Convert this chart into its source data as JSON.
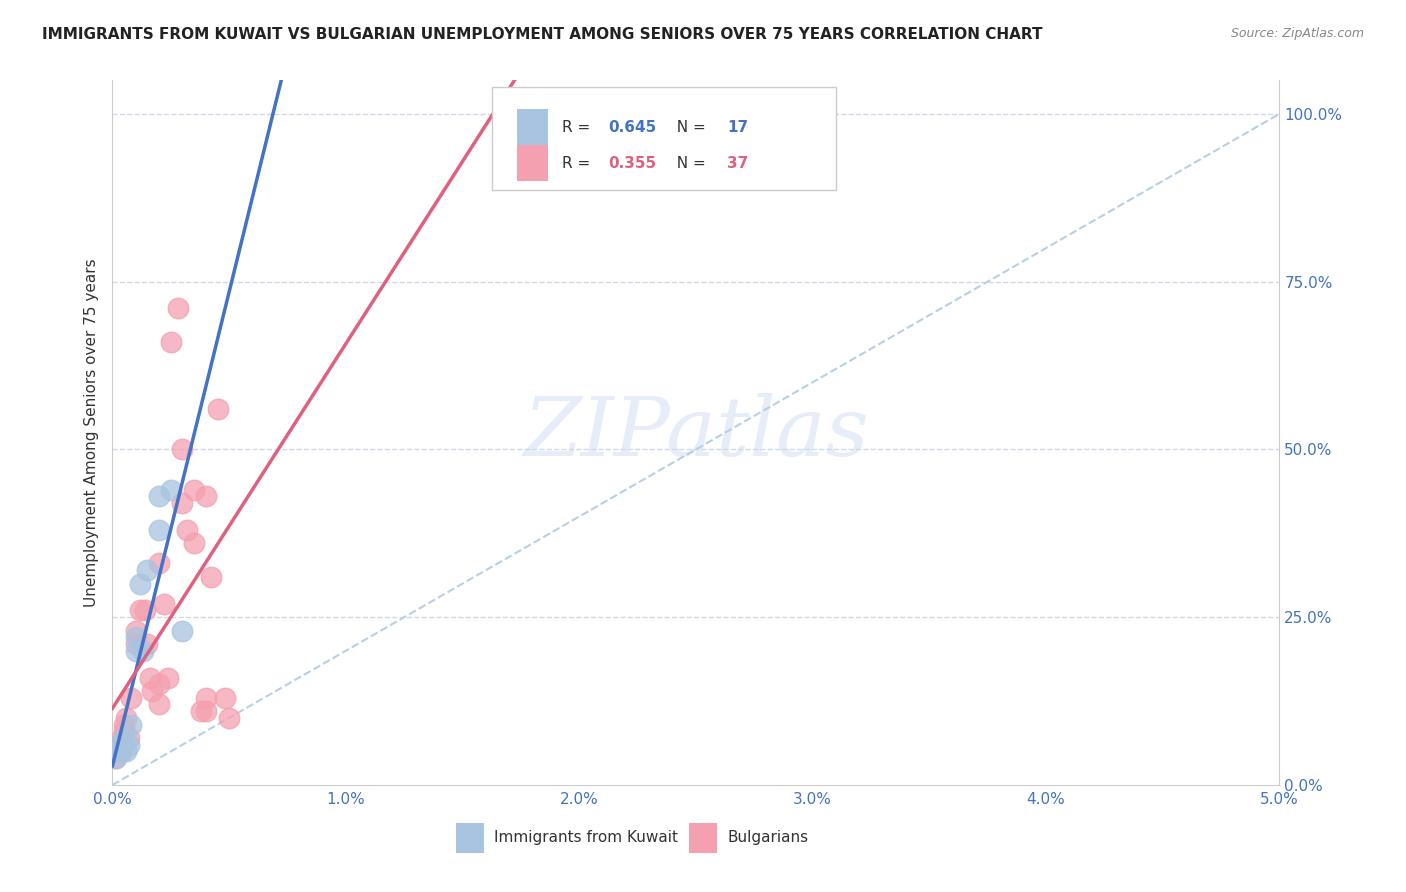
{
  "title": "IMMIGRANTS FROM KUWAIT VS BULGARIAN UNEMPLOYMENT AMONG SENIORS OVER 75 YEARS CORRELATION CHART",
  "source": "Source: ZipAtlas.com",
  "ylabel": "Unemployment Among Seniors over 75 years",
  "xlim": [
    0.0,
    0.05
  ],
  "ylim": [
    0.0,
    1.05
  ],
  "xticklabels": [
    "0.0%",
    "1.0%",
    "2.0%",
    "3.0%",
    "4.0%",
    "5.0%"
  ],
  "xtick_vals": [
    0.0,
    0.01,
    0.02,
    0.03,
    0.04,
    0.05
  ],
  "ytick_right_vals": [
    0.0,
    0.25,
    0.5,
    0.75,
    1.0
  ],
  "ytick_right_labels": [
    "0.0%",
    "25.0%",
    "50.0%",
    "75.0%",
    "100.0%"
  ],
  "legend1_R": "0.645",
  "legend1_N": "17",
  "legend2_R": "0.355",
  "legend2_N": "37",
  "legend_label1": "Immigrants from Kuwait",
  "legend_label2": "Bulgarians",
  "watermark": "ZIPatlas",
  "blue_scatter_color": "#a8c4e0",
  "pink_scatter_color": "#f4a0b0",
  "blue_line_color": "#4472c4",
  "pink_line_color": "#e06080",
  "diag_color": "#b8cfe8",
  "grid_color": "#d0d8e8",
  "background_color": "#ffffff",
  "axis_label_color": "#4472c4",
  "title_color": "#222222",
  "source_color": "#888888",
  "kuwait_x": [
    0.00015,
    0.0002,
    0.0003,
    0.0004,
    0.0005,
    0.0006,
    0.0007,
    0.0008,
    0.001,
    0.001,
    0.0012,
    0.0013,
    0.0015,
    0.002,
    0.002,
    0.0025,
    0.003
  ],
  "kuwait_y": [
    0.04,
    0.05,
    0.06,
    0.05,
    0.07,
    0.05,
    0.06,
    0.09,
    0.22,
    0.2,
    0.3,
    0.2,
    0.32,
    0.38,
    0.43,
    0.44,
    0.23
  ],
  "bulg_x": [
    0.0001,
    0.0002,
    0.0003,
    0.0004,
    0.0004,
    0.0005,
    0.0005,
    0.0006,
    0.0007,
    0.0008,
    0.001,
    0.001,
    0.0012,
    0.0014,
    0.0015,
    0.0016,
    0.0017,
    0.002,
    0.002,
    0.002,
    0.0022,
    0.0024,
    0.003,
    0.003,
    0.0035,
    0.004,
    0.004,
    0.0025,
    0.0028,
    0.0032,
    0.0035,
    0.004,
    0.0045,
    0.005,
    0.0048,
    0.0042,
    0.0038
  ],
  "bulg_y": [
    0.04,
    0.05,
    0.06,
    0.07,
    0.05,
    0.08,
    0.09,
    0.1,
    0.07,
    0.13,
    0.21,
    0.23,
    0.26,
    0.26,
    0.21,
    0.16,
    0.14,
    0.33,
    0.15,
    0.12,
    0.27,
    0.16,
    0.5,
    0.42,
    0.44,
    0.43,
    0.13,
    0.66,
    0.71,
    0.38,
    0.36,
    0.11,
    0.56,
    0.1,
    0.13,
    0.31,
    0.11
  ]
}
